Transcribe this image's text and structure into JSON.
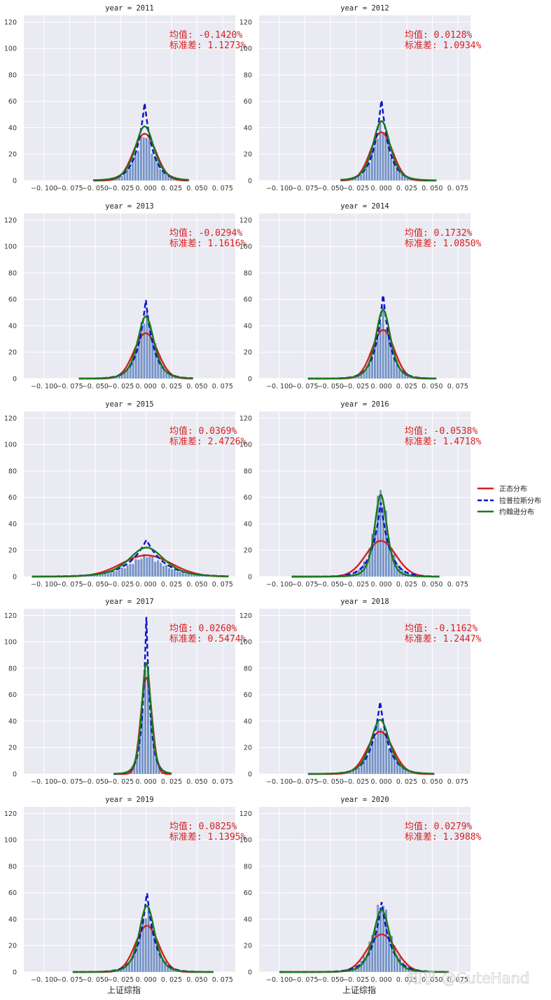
{
  "chart_data": {
    "type": "histogram-grid",
    "title": "上证综指 daily return distribution by year",
    "xlabel": "上证综指",
    "xlim": [
      -0.12,
      0.0875
    ],
    "ylim": [
      0,
      125
    ],
    "xticks": [
      -0.1,
      -0.075,
      -0.05,
      -0.025,
      0.0,
      0.025,
      0.05,
      0.075
    ],
    "xtick_labels": [
      "−0. 100",
      "−0. 075",
      "−0. 050",
      "−0. 025",
      "0. 000",
      "0. 025",
      "0. 050",
      "0. 075"
    ],
    "yticks": [
      0,
      20,
      40,
      60,
      80,
      100,
      120
    ],
    "ytick_labels": [
      "0",
      "20",
      "40",
      "60",
      "80",
      "100",
      "120"
    ],
    "grid": true,
    "legend_position": "right",
    "legend": [
      {
        "label": "正态分布",
        "color": "#d62020",
        "style": "solid"
      },
      {
        "label": "拉普拉斯分布",
        "color": "#0a12c8",
        "style": "dashed"
      },
      {
        "label": "约翰逊分布",
        "color": "#1a7a1a",
        "style": "solid"
      }
    ],
    "annotation_mean_label": "均值: ",
    "annotation_std_label": "标准差: ",
    "panels": [
      {
        "title": "year = 2011",
        "mean_text": "-0.1420%",
        "std_text": "1.1273%",
        "mean": -0.00142,
        "std": 0.011273,
        "laplace_peak": 59,
        "johnson_peak": 41,
        "range": [
          -0.052,
          0.042
        ],
        "hist_peak": 35
      },
      {
        "title": "year = 2012",
        "mean_text": "0.0128%",
        "std_text": "1.0934%",
        "mean": 0.000128,
        "std": 0.010934,
        "laplace_peak": 62,
        "johnson_peak": 45,
        "range": [
          -0.04,
          0.054
        ],
        "hist_peak": 40
      },
      {
        "title": "year = 2013",
        "mean_text": "-0.0294%",
        "std_text": "1.1616%",
        "mean": -0.000294,
        "std": 0.011616,
        "laplace_peak": 60,
        "johnson_peak": 47,
        "range": [
          -0.066,
          0.046
        ],
        "hist_peak": 48
      },
      {
        "title": "year = 2014",
        "mean_text": "0.1732%",
        "std_text": "1.0850%",
        "mean": 0.001732,
        "std": 0.01085,
        "laplace_peak": 65,
        "johnson_peak": 52,
        "range": [
          -0.072,
          0.054
        ],
        "hist_peak": 50
      },
      {
        "title": "year = 2015",
        "mean_text": "0.0369%",
        "std_text": "2.4726%",
        "mean": 0.000369,
        "std": 0.024726,
        "laplace_peak": 28,
        "johnson_peak": 22,
        "range": [
          -0.112,
          0.081
        ],
        "hist_peak": 16
      },
      {
        "title": "year = 2016",
        "mean_text": "-0.0538%",
        "std_text": "1.4718%",
        "mean": -0.000538,
        "std": 0.014718,
        "laplace_peak": 57,
        "johnson_peak": 62,
        "range": [
          -0.088,
          0.057
        ],
        "hist_peak": 66
      },
      {
        "title": "year = 2017",
        "mean_text": "0.0260%",
        "std_text": "0.5474%",
        "mean": 0.00026,
        "std": 0.005474,
        "laplace_peak": 120,
        "johnson_peak": 84,
        "range": [
          -0.032,
          0.025
        ],
        "hist_peak": 80
      },
      {
        "title": "year = 2018",
        "mean_text": "-0.1162%",
        "std_text": "1.2447%",
        "mean": -0.001162,
        "std": 0.012447,
        "laplace_peak": 55,
        "johnson_peak": 41,
        "range": [
          -0.072,
          0.052
        ],
        "hist_peak": 38
      },
      {
        "title": "year = 2019",
        "mean_text": "0.0825%",
        "std_text": "1.1395%",
        "mean": 0.000825,
        "std": 0.011395,
        "laplace_peak": 61,
        "johnson_peak": 50,
        "range": [
          -0.072,
          0.066
        ],
        "hist_peak": 46
      },
      {
        "title": "year = 2020",
        "mean_text": "0.0279%",
        "std_text": "1.3988%",
        "mean": 0.000279,
        "std": 0.013988,
        "laplace_peak": 53,
        "johnson_peak": 47,
        "range": [
          -0.1,
          0.066
        ],
        "hist_peak": 53
      }
    ]
  },
  "watermark": "知乎 @CuteHand"
}
